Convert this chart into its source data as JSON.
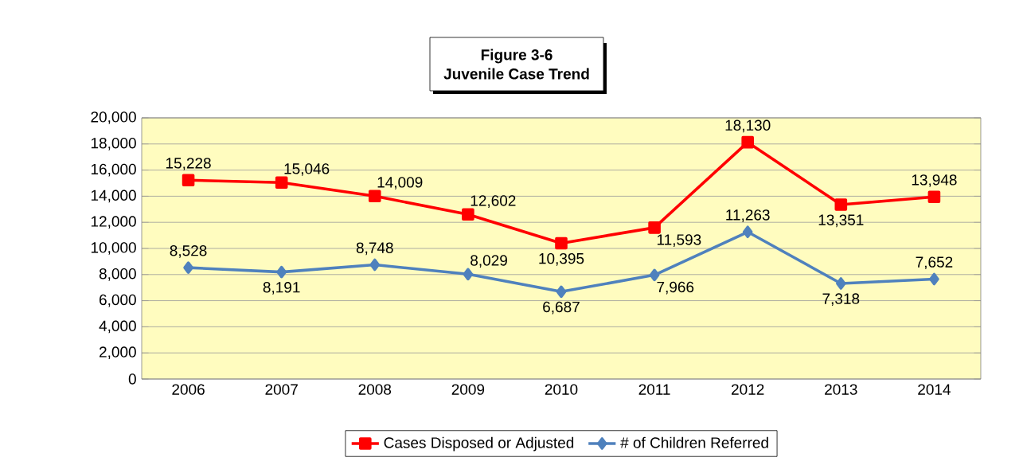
{
  "chart_data": {
    "type": "line",
    "title": "Figure  3-6",
    "subtitle": "Juvenile Case Trend",
    "categories": [
      "2006",
      "2007",
      "2008",
      "2009",
      "2010",
      "2011",
      "2012",
      "2013",
      "2014"
    ],
    "series": [
      {
        "name": "Cases Disposed or Adjusted",
        "color": "#ff0000",
        "marker": "square",
        "values": [
          15228,
          15046,
          14009,
          12602,
          10395,
          11593,
          18130,
          13351,
          13948
        ],
        "value_labels": [
          "15,228",
          "15,046",
          "14,009",
          "12,602",
          "10,395",
          "11,593",
          "18,130",
          "13,351",
          "13,948"
        ]
      },
      {
        "name": "# of Children Referred",
        "color": "#4f81bd",
        "marker": "diamond",
        "values": [
          8528,
          8191,
          8748,
          8029,
          6687,
          7966,
          11263,
          7318,
          7652
        ],
        "value_labels": [
          "8,528",
          "8,191",
          "8,748",
          "8,029",
          "6,687",
          "7,966",
          "11,263",
          "7,318",
          "7,652"
        ]
      }
    ],
    "ylim": [
      0,
      20000
    ],
    "yticks": [
      {
        "value": 0,
        "label": "0"
      },
      {
        "value": 2000,
        "label": "2,000"
      },
      {
        "value": 4000,
        "label": "4,000"
      },
      {
        "value": 6000,
        "label": "6,000"
      },
      {
        "value": 8000,
        "label": "8,000"
      },
      {
        "value": 10000,
        "label": "10,000"
      },
      {
        "value": 12000,
        "label": "12,000"
      },
      {
        "value": 14000,
        "label": "14,000"
      },
      {
        "value": 16000,
        "label": "16,000"
      },
      {
        "value": 18000,
        "label": "18,000"
      },
      {
        "value": 20000,
        "label": "20,000"
      }
    ],
    "grid": "y",
    "legend": "bottom",
    "line_style": "solid"
  }
}
